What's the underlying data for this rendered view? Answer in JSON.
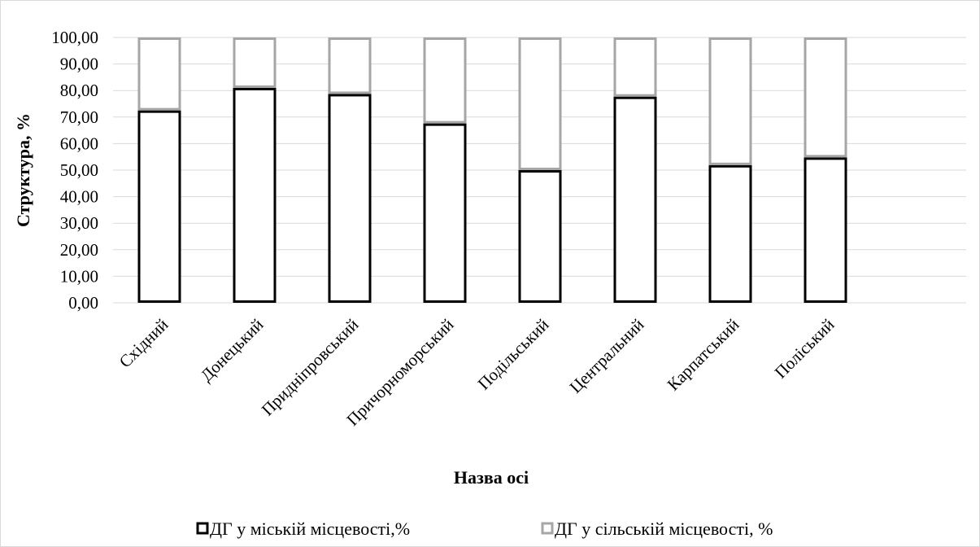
{
  "chart_data": {
    "type": "bar",
    "stacked": true,
    "categories": [
      "Східний",
      "Донецький",
      "Придніпровський",
      "Причорноморський",
      "Подільський",
      "Центральний",
      "Карпатський",
      "Поліський"
    ],
    "series": [
      {
        "name": "ДГ у міській місцевості,%",
        "values": [
          72.5,
          81.0,
          78.7,
          67.6,
          50.0,
          77.7,
          51.9,
          54.8
        ],
        "color": "#000000"
      },
      {
        "name": "ДГ у сільській місцевості, %",
        "values": [
          27.5,
          19.0,
          21.3,
          32.4,
          50.0,
          22.3,
          48.1,
          45.2
        ],
        "color": "#a6a6a6"
      }
    ],
    "xlabel": "Назва осі",
    "ylabel": "Структура, %",
    "ylim": [
      0,
      100
    ],
    "yticks": [
      "0,00",
      "10,00",
      "20,00",
      "30,00",
      "40,00",
      "50,00",
      "60,00",
      "70,00",
      "80,00",
      "90,00",
      "100,00"
    ],
    "grid": true,
    "legend": "bottom"
  }
}
